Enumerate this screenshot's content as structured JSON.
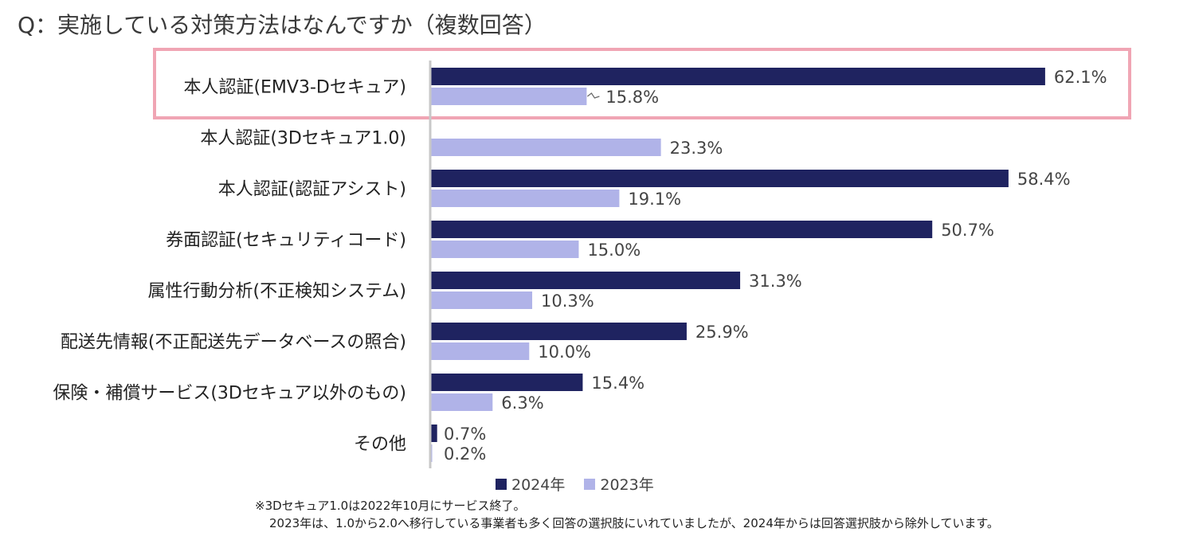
{
  "question": "Q：実施している対策方法はなんですか（複数回答）",
  "chart_data": {
    "type": "bar",
    "orientation": "horizontal",
    "title": "Q：実施している対策方法はなんですか（複数回答）",
    "categories": [
      "本人認証(EMV3-Dセキュア)",
      "本人認証(3Dセキュア1.0)",
      "本人認証(認証アシスト)",
      "券面認証(セキュリティコード)",
      "属性行動分析(不正検知システム)",
      "配送先情報(不正配送先データベースの照合)",
      "保険・補償サービス(3Dセキュア以外のもの)",
      "その他"
    ],
    "series": [
      {
        "name": "2024年",
        "color": "#1f2360",
        "values": [
          62.1,
          null,
          58.4,
          50.7,
          31.3,
          25.9,
          15.4,
          0.7
        ],
        "labels": [
          "62.1%",
          "",
          "58.4%",
          "50.7%",
          "31.3%",
          "25.9%",
          "15.4%",
          "0.7%"
        ]
      },
      {
        "name": "2023年",
        "color": "#b0b3e8",
        "values": [
          15.8,
          23.3,
          19.1,
          15.0,
          10.3,
          10.0,
          6.3,
          0.2
        ],
        "labels": [
          "15.8%",
          "23.3%",
          "19.1%",
          "15.0%",
          "10.3%",
          "10.0%",
          "6.3%",
          "0.2%"
        ]
      }
    ],
    "xlim": [
      0,
      100
    ],
    "unit": "%",
    "grid": false,
    "legend_position": "bottom",
    "highlight_category_index": 0,
    "highlight_color": "#f0a5b4"
  },
  "legend": [
    {
      "label": "2024年",
      "color": "#1f2360"
    },
    {
      "label": "2023年",
      "color": "#b0b3e8"
    }
  ],
  "note": {
    "line1": "※3Dセキュア1.0は2022年10月にサービス終了。",
    "line2": "2023年は、1.0から2.0へ移行している事業者も多く回答の選択肢にいれていましたが、2024年からは回答選択肢から除外しています。"
  }
}
